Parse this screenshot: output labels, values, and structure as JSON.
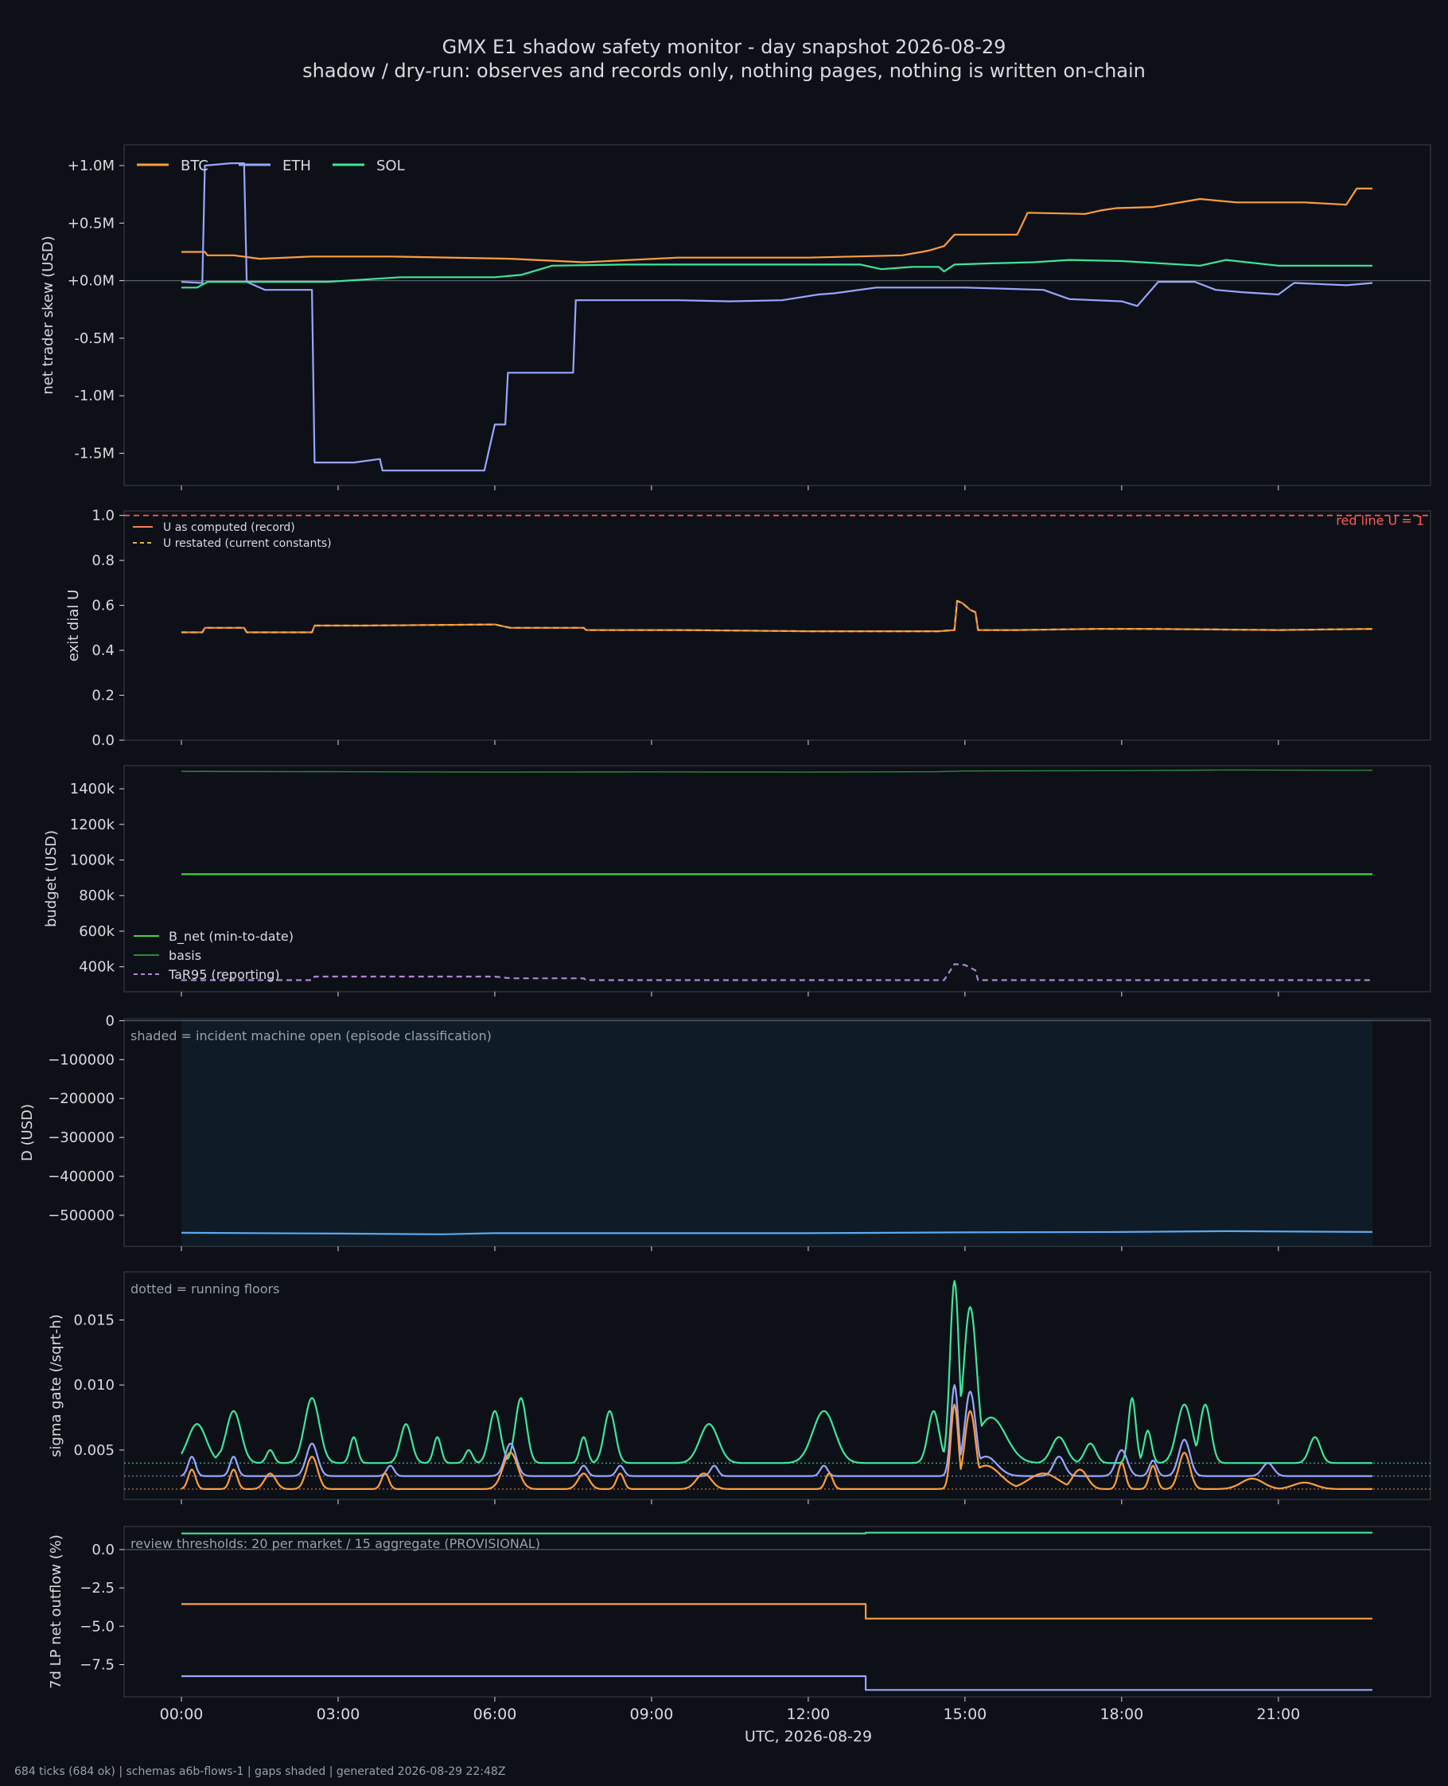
{
  "title": "GMX E1 shadow safety monitor - day snapshot 2026-08-29",
  "subtitle": "shadow / dry-run: observes and records only, nothing pages, nothing is written on-chain",
  "footer": "684 ticks (684 ok) | schemas a6b-flows-1 | gaps shaded | generated 2026-08-29 22:48Z",
  "xlabel": "UTC, 2026-08-29",
  "x_tick_labels": [
    "00:00",
    "03:00",
    "06:00",
    "09:00",
    "12:00",
    "15:00",
    "18:00",
    "21:00"
  ],
  "colors": {
    "btc": "#ff9e3d",
    "eth": "#98a6ff",
    "sol": "#3ee69b",
    "redline": "#ff5b57",
    "u_record": "#ff7a4a",
    "u_restated": "#e2b13a",
    "b_net": "#44d544",
    "basis": "#2e8a3a",
    "tar95": "#b085d4",
    "d": "#5aa9f0"
  },
  "chart_data": [
    {
      "id": "skew",
      "type": "line",
      "ylabel": "net trader skew (USD)",
      "ylim": [
        -1.78,
        1.18
      ],
      "y_ticks": [
        1.0,
        0.5,
        0.0,
        -0.5,
        -1.0,
        -1.5
      ],
      "y_tick_labels": [
        "+1.0M",
        "+0.5M",
        "+0.0M",
        "-0.5M",
        "-1.0M",
        "-1.5M"
      ],
      "zero_line": true,
      "legend_position": "top-left",
      "series": [
        {
          "name": "BTC",
          "color_key": "btc",
          "x": [
            0,
            0.45,
            0.5,
            1.0,
            1.5,
            2.5,
            4,
            6.3,
            7.7,
            9.5,
            12,
            13.8,
            14.3,
            14.6,
            14.8,
            15.2,
            16.0,
            16.2,
            17.3,
            17.6,
            17.9,
            18.6,
            19.5,
            20.2,
            21.5,
            22.3,
            22.5,
            22.8
          ],
          "values": [
            0.25,
            0.25,
            0.22,
            0.22,
            0.19,
            0.21,
            0.21,
            0.19,
            0.16,
            0.2,
            0.2,
            0.22,
            0.26,
            0.3,
            0.4,
            0.4,
            0.4,
            0.59,
            0.58,
            0.61,
            0.63,
            0.64,
            0.71,
            0.68,
            0.68,
            0.66,
            0.8,
            0.8
          ]
        },
        {
          "name": "ETH",
          "color_key": "eth",
          "x": [
            0,
            0.4,
            0.45,
            0.95,
            1.2,
            1.25,
            1.6,
            2.5,
            2.55,
            3.3,
            3.8,
            3.85,
            5.8,
            6.0,
            6.2,
            6.25,
            7.5,
            7.55,
            9.5,
            10.5,
            11.5,
            12.2,
            12.5,
            13.3,
            15.0,
            16.5,
            17.0,
            18.0,
            18.3,
            18.7,
            19.4,
            19.8,
            20.3,
            21.0,
            21.3,
            22.3,
            22.8
          ],
          "values": [
            -0.01,
            -0.02,
            1.0,
            1.02,
            1.02,
            -0.01,
            -0.08,
            -0.08,
            -1.58,
            -1.58,
            -1.55,
            -1.65,
            -1.65,
            -1.25,
            -1.25,
            -0.8,
            -0.8,
            -0.17,
            -0.17,
            -0.18,
            -0.17,
            -0.12,
            -0.11,
            -0.06,
            -0.06,
            -0.08,
            -0.16,
            -0.18,
            -0.22,
            -0.01,
            -0.01,
            -0.08,
            -0.1,
            -0.12,
            -0.02,
            -0.04,
            -0.02
          ]
        },
        {
          "name": "SOL",
          "color_key": "sol",
          "x": [
            0,
            0.3,
            0.5,
            2.8,
            4.2,
            6.0,
            6.5,
            7.1,
            8.5,
            9.5,
            12.0,
            13.0,
            13.4,
            14.0,
            14.5,
            14.6,
            14.8,
            15.5,
            16.3,
            17.0,
            18.0,
            19.5,
            20.0,
            21.0,
            22.8
          ],
          "values": [
            -0.06,
            -0.06,
            -0.01,
            -0.01,
            0.03,
            0.03,
            0.05,
            0.13,
            0.14,
            0.14,
            0.14,
            0.14,
            0.1,
            0.12,
            0.12,
            0.08,
            0.14,
            0.15,
            0.16,
            0.18,
            0.17,
            0.13,
            0.18,
            0.13,
            0.13
          ]
        }
      ]
    },
    {
      "id": "exit_dial",
      "type": "line",
      "ylabel": "exit dial U",
      "ylim": [
        0,
        1.02
      ],
      "y_ticks": [
        0.0,
        0.2,
        0.4,
        0.6,
        0.8,
        1.0
      ],
      "y_tick_labels": [
        "0.0",
        "0.2",
        "0.4",
        "0.6",
        "0.8",
        "1.0"
      ],
      "annotation": "red line U = 1",
      "legend_position": "top-left",
      "series": [
        {
          "name": "U as computed (record)",
          "color_key": "u_record",
          "dashed": false,
          "x": [
            0,
            0.4,
            0.45,
            1.2,
            1.25,
            2.5,
            2.55,
            3.5,
            6.0,
            6.3,
            6.5,
            7.7,
            7.75,
            9.5,
            12.0,
            14.5,
            14.8,
            14.85,
            14.95,
            15.1,
            15.2,
            15.25,
            16.0,
            17.5,
            18.5,
            21.0,
            22.8
          ],
          "values": [
            0.48,
            0.48,
            0.5,
            0.5,
            0.48,
            0.48,
            0.51,
            0.51,
            0.515,
            0.5,
            0.5,
            0.5,
            0.49,
            0.49,
            0.485,
            0.485,
            0.49,
            0.62,
            0.61,
            0.58,
            0.57,
            0.49,
            0.49,
            0.495,
            0.495,
            0.49,
            0.495
          ]
        },
        {
          "name": "U restated (current constants)",
          "color_key": "u_restated",
          "dashed": true,
          "x": [
            0,
            0.4,
            0.45,
            1.2,
            1.25,
            2.5,
            2.55,
            3.5,
            6.0,
            6.3,
            6.5,
            7.7,
            7.75,
            9.5,
            12.0,
            14.5,
            14.8,
            14.85,
            14.95,
            15.1,
            15.2,
            15.25,
            16.0,
            17.5,
            18.5,
            21.0,
            22.8
          ],
          "values": [
            0.48,
            0.48,
            0.5,
            0.5,
            0.48,
            0.48,
            0.51,
            0.51,
            0.515,
            0.5,
            0.5,
            0.5,
            0.49,
            0.49,
            0.485,
            0.485,
            0.49,
            0.62,
            0.61,
            0.58,
            0.57,
            0.49,
            0.49,
            0.495,
            0.495,
            0.49,
            0.495
          ]
        }
      ],
      "reference_line": {
        "y": 1.0,
        "color_key": "redline",
        "dashed": true
      }
    },
    {
      "id": "budget",
      "type": "line",
      "ylabel": "budget (USD)",
      "ylim": [
        260,
        1530
      ],
      "y_ticks": [
        400,
        600,
        800,
        1000,
        1200,
        1400
      ],
      "y_tick_labels": [
        "400k",
        "600k",
        "800k",
        "1000k",
        "1200k",
        "1400k"
      ],
      "legend_position": "bottom-left",
      "series": [
        {
          "name": "B_net (min-to-date)",
          "color_key": "b_net",
          "dashed": false,
          "x": [
            0,
            22.8
          ],
          "values": [
            920,
            920
          ]
        },
        {
          "name": "basis",
          "color_key": "basis",
          "dashed": false,
          "x": [
            0,
            3,
            6,
            9,
            12,
            14.5,
            15,
            18,
            20,
            22.8
          ],
          "values": [
            1498,
            1496,
            1494,
            1495,
            1494,
            1496,
            1500,
            1502,
            1506,
            1504
          ]
        },
        {
          "name": "TaR95 (reporting)",
          "color_key": "tar95",
          "dashed": true,
          "x": [
            0,
            2.5,
            2.55,
            6.0,
            6.3,
            7.7,
            7.75,
            12,
            14.6,
            14.8,
            15.0,
            15.2,
            15.25,
            20.0,
            22.8
          ],
          "values": [
            325,
            325,
            345,
            345,
            335,
            335,
            325,
            325,
            325,
            415,
            410,
            380,
            325,
            325,
            325
          ]
        }
      ]
    },
    {
      "id": "d_usd",
      "type": "area",
      "ylabel": "D (USD)",
      "ylim": [
        -580000,
        5000
      ],
      "y_ticks": [
        0,
        -100000,
        -200000,
        -300000,
        -400000,
        -500000
      ],
      "y_tick_labels": [
        "0",
        "−100000",
        "−200000",
        "−300000",
        "−400000",
        "−500000"
      ],
      "annotation": "shaded = incident machine open (episode classification)",
      "shaded_x": [
        0,
        22.8
      ],
      "zero_line": true,
      "series": [
        {
          "name": "D",
          "color_key": "d",
          "x": [
            0,
            3,
            5,
            6,
            9,
            12,
            15,
            18,
            20,
            22.8
          ],
          "values": [
            -545000,
            -547000,
            -549000,
            -546000,
            -546000,
            -546000,
            -544000,
            -543000,
            -541000,
            -543000
          ]
        }
      ]
    },
    {
      "id": "sigma",
      "type": "line",
      "ylabel": "sigma gate (/sqrt-h)",
      "ylim": [
        0.0012,
        0.0187
      ],
      "y_ticks": [
        0.005,
        0.01,
        0.015
      ],
      "y_tick_labels": [
        "0.005",
        "0.010",
        "0.015"
      ],
      "annotation": "dotted = running floors",
      "floors": [
        {
          "color_key": "sol",
          "value": 0.004
        },
        {
          "color_key": "eth",
          "value": 0.003
        },
        {
          "color_key": "btc",
          "value": 0.002
        }
      ],
      "series": [
        {
          "name": "SOL",
          "color_key": "sol",
          "base": 0.004,
          "bumps": [
            [
              0.3,
              0.25,
              0.007
            ],
            [
              0.8,
              0.15,
              0.005
            ],
            [
              1.0,
              0.2,
              0.008
            ],
            [
              1.7,
              0.1,
              0.005
            ],
            [
              2.5,
              0.2,
              0.009
            ],
            [
              3.3,
              0.1,
              0.006
            ],
            [
              4.3,
              0.15,
              0.007
            ],
            [
              4.9,
              0.1,
              0.006
            ],
            [
              5.5,
              0.1,
              0.005
            ],
            [
              6.0,
              0.15,
              0.008
            ],
            [
              6.5,
              0.15,
              0.009
            ],
            [
              7.7,
              0.1,
              0.006
            ],
            [
              8.2,
              0.15,
              0.008
            ],
            [
              10.1,
              0.25,
              0.007
            ],
            [
              12.3,
              0.3,
              0.008
            ],
            [
              14.4,
              0.15,
              0.008
            ],
            [
              14.8,
              0.12,
              0.018
            ],
            [
              15.1,
              0.18,
              0.016
            ],
            [
              15.5,
              0.4,
              0.0075
            ],
            [
              16.8,
              0.2,
              0.006
            ],
            [
              17.4,
              0.15,
              0.0055
            ],
            [
              18.2,
              0.1,
              0.009
            ],
            [
              18.5,
              0.1,
              0.0065
            ],
            [
              19.2,
              0.2,
              0.0085
            ],
            [
              19.6,
              0.15,
              0.0085
            ],
            [
              21.7,
              0.15,
              0.006
            ]
          ]
        },
        {
          "name": "ETH",
          "color_key": "eth",
          "base": 0.003,
          "bumps": [
            [
              0.2,
              0.1,
              0.0045
            ],
            [
              1.0,
              0.1,
              0.0045
            ],
            [
              2.5,
              0.15,
              0.0055
            ],
            [
              4.0,
              0.1,
              0.0038
            ],
            [
              6.3,
              0.15,
              0.0055
            ],
            [
              7.7,
              0.1,
              0.0038
            ],
            [
              8.4,
              0.1,
              0.0038
            ],
            [
              10.2,
              0.1,
              0.0038
            ],
            [
              12.3,
              0.1,
              0.0038
            ],
            [
              14.8,
              0.1,
              0.01
            ],
            [
              15.1,
              0.15,
              0.0095
            ],
            [
              15.4,
              0.3,
              0.0045
            ],
            [
              16.8,
              0.15,
              0.0045
            ],
            [
              18.0,
              0.15,
              0.005
            ],
            [
              18.6,
              0.1,
              0.0042
            ],
            [
              19.2,
              0.15,
              0.0058
            ],
            [
              20.8,
              0.15,
              0.004
            ]
          ]
        },
        {
          "name": "BTC",
          "color_key": "btc",
          "base": 0.002,
          "bumps": [
            [
              0.2,
              0.1,
              0.0035
            ],
            [
              1.0,
              0.1,
              0.0035
            ],
            [
              1.7,
              0.15,
              0.0032
            ],
            [
              2.5,
              0.15,
              0.0045
            ],
            [
              3.9,
              0.1,
              0.0032
            ],
            [
              6.3,
              0.2,
              0.0048
            ],
            [
              7.7,
              0.15,
              0.0032
            ],
            [
              8.4,
              0.1,
              0.0032
            ],
            [
              10.0,
              0.2,
              0.0032
            ],
            [
              12.4,
              0.1,
              0.0032
            ],
            [
              14.8,
              0.1,
              0.0085
            ],
            [
              15.1,
              0.15,
              0.008
            ],
            [
              15.4,
              0.4,
              0.0038
            ],
            [
              16.5,
              0.4,
              0.0032
            ],
            [
              17.2,
              0.2,
              0.0035
            ],
            [
              18.0,
              0.1,
              0.004
            ],
            [
              18.6,
              0.1,
              0.0038
            ],
            [
              19.2,
              0.15,
              0.0048
            ],
            [
              20.5,
              0.3,
              0.0028
            ],
            [
              21.5,
              0.3,
              0.0025
            ]
          ]
        }
      ]
    },
    {
      "id": "lp_outflow",
      "type": "line",
      "ylabel": "7d LP net outflow (%)",
      "ylim": [
        -9.6,
        1.5
      ],
      "y_ticks": [
        0.0,
        -2.5,
        -5.0,
        -7.5
      ],
      "y_tick_labels": [
        "0.0",
        "−2.5",
        "−5.0",
        "−7.5"
      ],
      "annotation": "review thresholds: 20 per market / 15 aggregate (PROVISIONAL)",
      "zero_line": true,
      "series": [
        {
          "name": "SOL",
          "color_key": "sol",
          "x": [
            0,
            13.1,
            13.1,
            22.8
          ],
          "values": [
            1.05,
            1.05,
            1.1,
            1.1
          ]
        },
        {
          "name": "BTC",
          "color_key": "btc",
          "x": [
            0,
            13.1,
            13.1,
            22.8
          ],
          "values": [
            -3.55,
            -3.55,
            -4.5,
            -4.5
          ]
        },
        {
          "name": "ETH",
          "color_key": "eth",
          "x": [
            0,
            13.1,
            13.1,
            22.8
          ],
          "values": [
            -8.25,
            -8.25,
            -9.15,
            -9.15
          ]
        }
      ]
    }
  ]
}
